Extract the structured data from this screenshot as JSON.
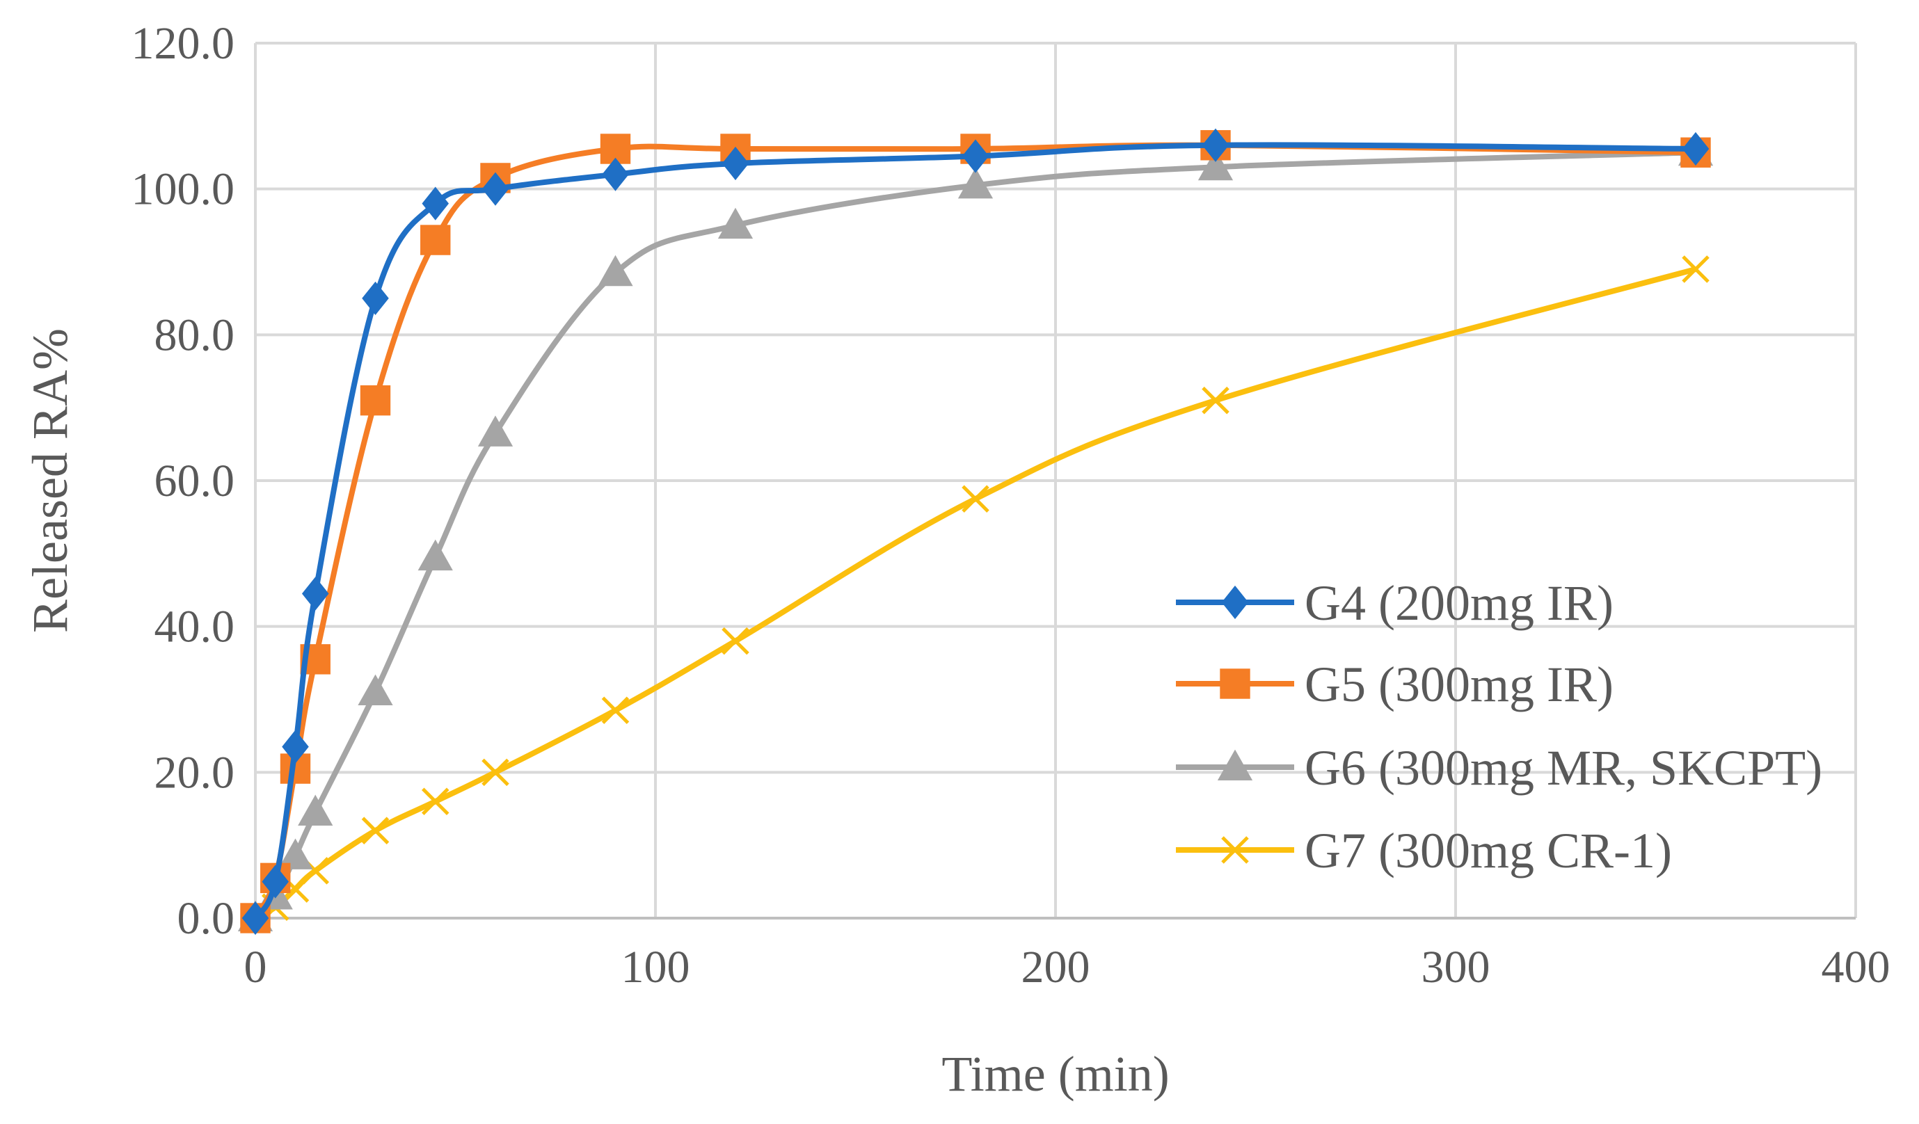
{
  "chart_data": {
    "type": "line",
    "title": "",
    "xlabel": "Time (min)",
    "ylabel": "Released RA%",
    "xlim": [
      0,
      400
    ],
    "ylim": [
      0,
      120
    ],
    "xticks": [
      0,
      100,
      200,
      300,
      400
    ],
    "yticks": [
      0,
      20,
      40,
      60,
      80,
      100,
      120
    ],
    "xtick_labels": [
      "0",
      "100",
      "200",
      "300",
      "400"
    ],
    "ytick_labels": [
      "0.0",
      "20.0",
      "40.0",
      "60.0",
      "80.0",
      "100.0",
      "120.0"
    ],
    "grid": true,
    "legend_position": "right-bottom",
    "series": [
      {
        "name": "G4 (200mg IR)",
        "color": "#1f6fc5",
        "marker": "diamond",
        "points": [
          [
            0,
            0
          ],
          [
            5,
            5
          ],
          [
            10,
            23.5
          ],
          [
            15,
            44.5
          ],
          [
            30,
            85
          ],
          [
            45,
            98
          ],
          [
            60,
            100
          ],
          [
            90,
            102
          ],
          [
            120,
            103.5
          ],
          [
            180,
            104.5
          ],
          [
            240,
            106
          ],
          [
            360,
            105.5
          ]
        ]
      },
      {
        "name": "G5 (300mg IR)",
        "color": "#f57d25",
        "marker": "square",
        "points": [
          [
            0,
            0
          ],
          [
            5,
            5.5
          ],
          [
            10,
            20.5
          ],
          [
            15,
            35.5
          ],
          [
            30,
            71
          ],
          [
            45,
            93
          ],
          [
            60,
            101.5
          ],
          [
            90,
            105.5
          ],
          [
            120,
            105.5
          ],
          [
            180,
            105.5
          ],
          [
            240,
            106
          ],
          [
            360,
            105
          ]
        ]
      },
      {
        "name": "G6 (300mg MR, SKCPT)",
        "color": "#a5a5a5",
        "marker": "triangle",
        "points": [
          [
            0,
            0
          ],
          [
            5,
            3
          ],
          [
            10,
            8.5
          ],
          [
            15,
            14.5
          ],
          [
            30,
            31
          ],
          [
            45,
            49.5
          ],
          [
            60,
            66.5
          ],
          [
            90,
            88.5
          ],
          [
            120,
            95
          ],
          [
            180,
            100.5
          ],
          [
            240,
            103
          ],
          [
            360,
            105
          ]
        ]
      },
      {
        "name": "G7 (300mg CR-1)",
        "color": "#fbbf0e",
        "marker": "x",
        "points": [
          [
            0,
            0
          ],
          [
            5,
            1.5
          ],
          [
            10,
            4
          ],
          [
            15,
            6.5
          ],
          [
            30,
            12
          ],
          [
            45,
            16
          ],
          [
            60,
            20
          ],
          [
            90,
            28.5
          ],
          [
            120,
            38
          ],
          [
            180,
            57.5
          ],
          [
            240,
            71
          ],
          [
            360,
            89
          ]
        ]
      }
    ]
  }
}
